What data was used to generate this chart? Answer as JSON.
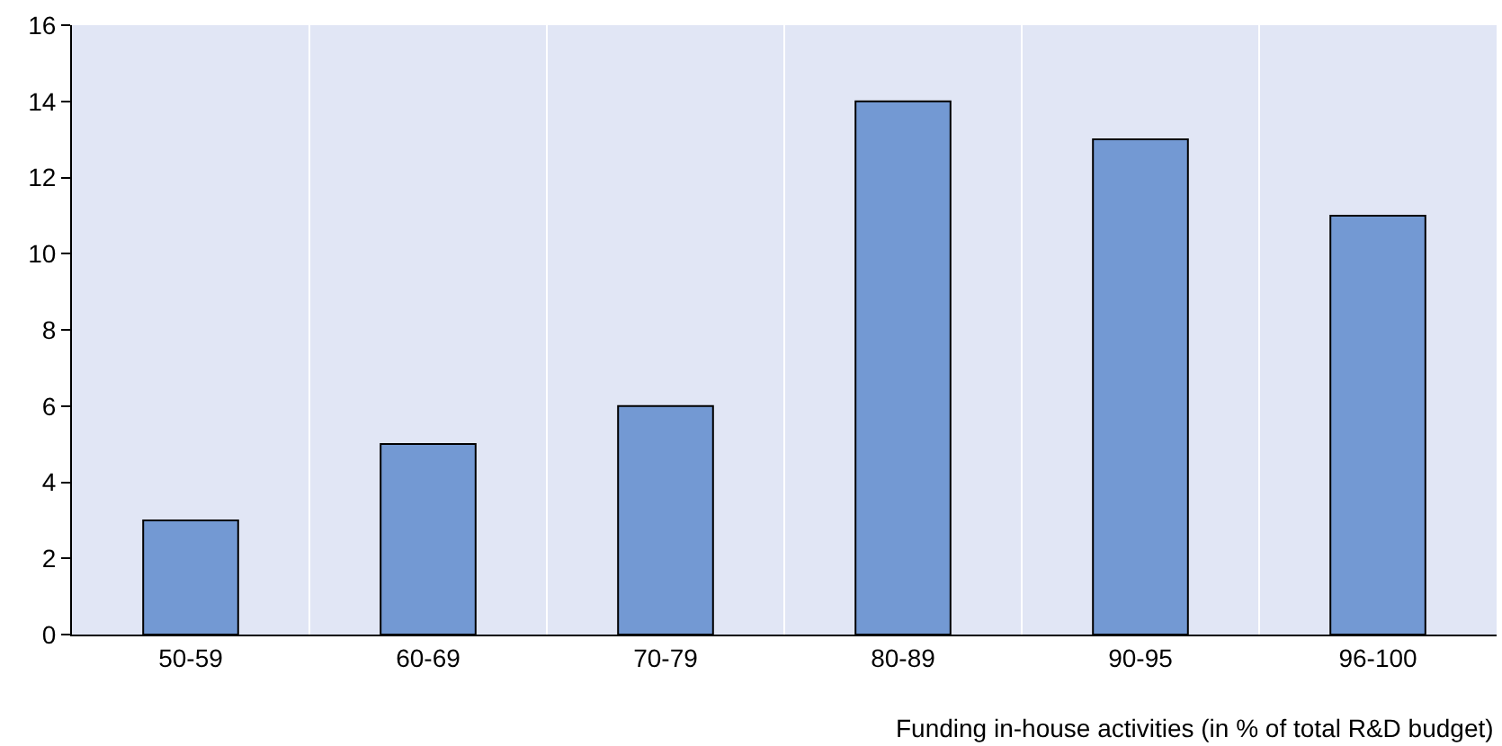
{
  "chart_data": {
    "type": "bar",
    "xlabel": "Funding in-house activities (in % of total R&D budget)",
    "categories": [
      "50-59",
      "60-69",
      "70-79",
      "80-89",
      "90-95",
      "96-100"
    ],
    "values": [
      3,
      5,
      6,
      14,
      13,
      11
    ],
    "color": "#7399d3",
    "ylim": [
      0,
      16
    ],
    "yticks": [
      0,
      2,
      4,
      6,
      8,
      10,
      12,
      14,
      16
    ],
    "grid": "x"
  }
}
